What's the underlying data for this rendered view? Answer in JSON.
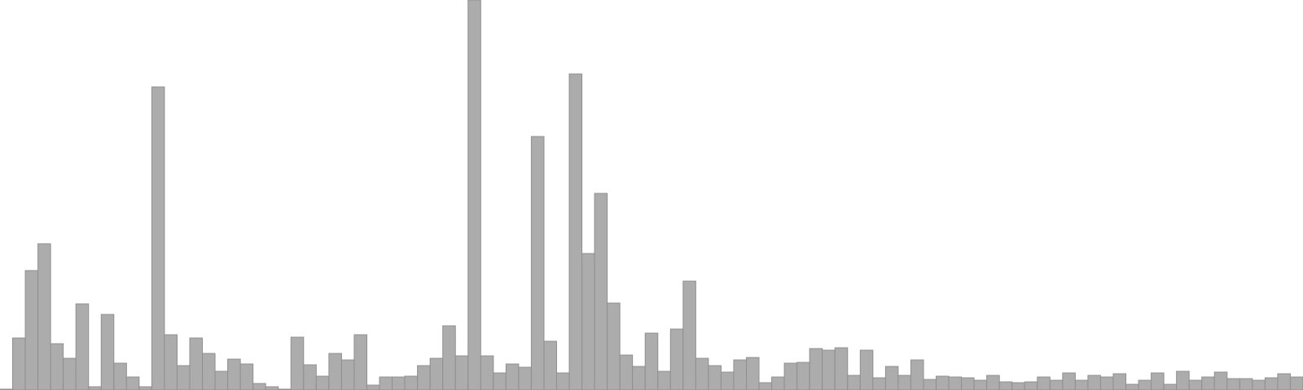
{
  "chart_data": {
    "type": "bar",
    "title": "",
    "xlabel": "",
    "ylabel": "",
    "grid": false,
    "legend": "none",
    "colors": {
      "bar_fill": "#acacac",
      "bar_stroke": "#8f8f8f",
      "background": "#ffffff"
    },
    "ylim": [
      0,
      480
    ],
    "values": [
      1,
      64,
      147,
      180,
      57,
      39,
      106,
      4,
      93,
      33,
      16,
      4,
      373,
      68,
      30,
      64,
      45,
      23,
      38,
      32,
      8,
      4,
      1,
      65,
      31,
      17,
      45,
      37,
      68,
      6,
      16,
      16,
      17,
      30,
      39,
      79,
      42,
      480,
      42,
      21,
      32,
      28,
      312,
      60,
      21,
      389,
      168,
      242,
      107,
      43,
      29,
      70,
      23,
      75,
      134,
      39,
      30,
      22,
      37,
      40,
      9,
      16,
      33,
      34,
      51,
      49,
      52,
      18,
      49,
      15,
      29,
      18,
      37,
      13,
      17,
      16,
      15,
      12,
      18,
      10,
      9,
      10,
      16,
      12,
      21,
      12,
      18,
      16,
      20,
      7,
      12,
      21,
      7,
      23,
      12,
      16,
      22,
      14,
      14,
      12,
      15,
      20,
      16
    ]
  }
}
